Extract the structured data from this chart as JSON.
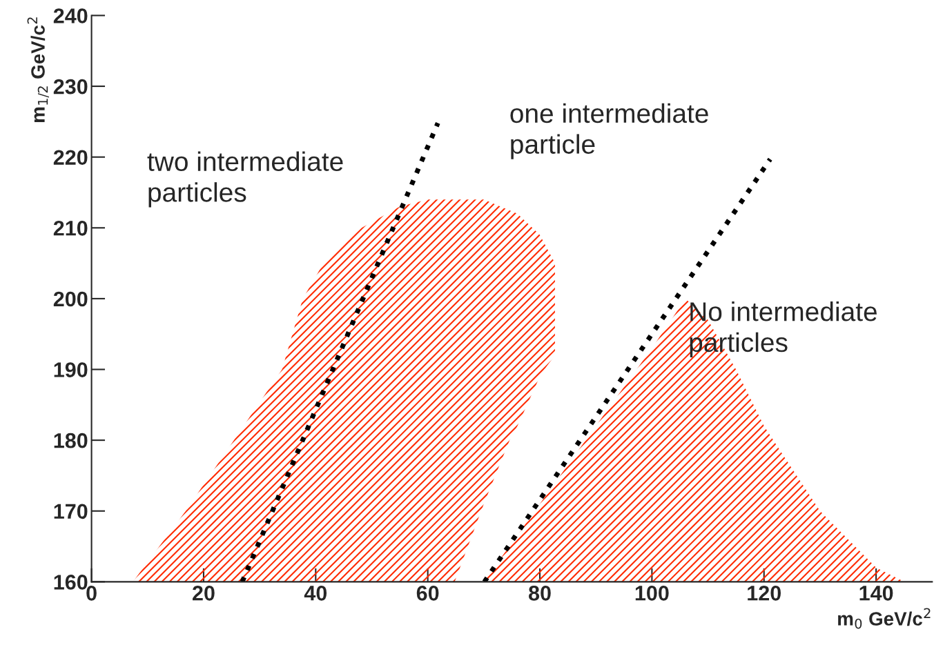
{
  "chart_data": {
    "type": "area",
    "xlabel": "m$_{0}$ GeV/c$^{2}$",
    "ylabel": "m$_{1/2}$ GeV/c$^{2}$",
    "xlim": [
      0,
      150
    ],
    "xticks": [
      0,
      20,
      40,
      60,
      80,
      100,
      120,
      140
    ],
    "ylim": [
      160,
      240
    ],
    "yticks": [
      160,
      170,
      180,
      190,
      200,
      210,
      220,
      230,
      240
    ],
    "grid": false,
    "legend": false,
    "series": [
      {
        "color": "#ff2a00",
        "x": [
          7.4,
          16.8,
          25.4,
          34,
          37.7,
          41.4,
          48.2,
          55,
          60,
          70,
          76,
          80,
          82.7,
          82.7,
          80.8,
          80,
          76,
          74.6,
          70,
          64.8
        ],
        "values": [
          160,
          170,
          180,
          190,
          200,
          205,
          210,
          213,
          214,
          214,
          212,
          209,
          205,
          192,
          190,
          189,
          182,
          180,
          171,
          160
        ]
      },
      {
        "color": "#ff2a00",
        "x": [
          70,
          80,
          90,
          100,
          106,
          110,
          115,
          120,
          125,
          130,
          135,
          140,
          145
        ],
        "values": [
          160,
          171,
          182,
          193,
          200,
          197,
          190,
          182,
          176,
          170,
          166,
          162,
          160
        ]
      },
      {
        "type": "line",
        "color": "#000000",
        "line_style": "dotted",
        "x": [
          26.9,
          61.8
        ],
        "values": [
          160,
          224.8
        ]
      },
      {
        "type": "line",
        "color": "#000000",
        "line_style": "dotted",
        "x": [
          70.1,
          121.1
        ],
        "values": [
          160,
          219.7
        ]
      }
    ],
    "annotations": [
      "two intermediate\nparticles",
      "one intermediate\nparticle",
      "No intermediate\nparticles"
    ]
  }
}
